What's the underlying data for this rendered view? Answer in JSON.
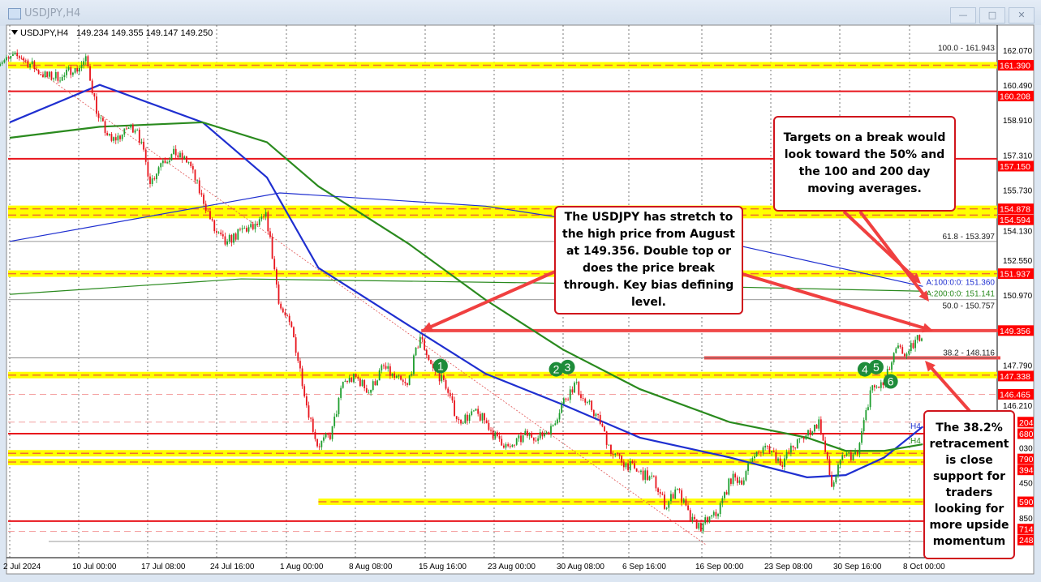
{
  "window": {
    "title": "USDJPY,H4",
    "buttons": [
      "minimize",
      "maximize",
      "close"
    ]
  },
  "header": {
    "symbol": "USDJPY,H4",
    "ohlc": "149.234 149.355 149.147 149.250"
  },
  "colors": {
    "bull": "#1e9e2e",
    "bear": "#e8141c",
    "ma100": "#1f2fd0",
    "ma200": "#2a8a1e",
    "level": "#e8141c",
    "zone": "#ffff00",
    "note_border": "#d0141c",
    "marker": "#1e8c3a"
  },
  "chart_data": {
    "type": "candlestick",
    "title": "",
    "ylim": [
      139.5,
      162.6
    ],
    "grid": true,
    "y_ticks": [
      "162.070",
      "160.490",
      "158.910",
      "157.310",
      "155.730",
      "154.130",
      "152.550",
      "150.970",
      "147.790",
      "146.210"
    ],
    "y_ticks_partial": [
      "030",
      "450",
      "850"
    ],
    "x_ticks": [
      "2 Jul 2024",
      "10 Jul 00:00",
      "17 Jul 08:00",
      "24 Jul 16:00",
      "1 Aug 00:00",
      "8 Aug 08:00",
      "15 Aug 16:00",
      "23 Aug 00:00",
      "30 Aug 08:00",
      "6 Sep 16:00",
      "16 Sep 00:00",
      "23 Sep 08:00",
      "30 Sep 16:00",
      "8 Oct 00:00"
    ],
    "closes": [
      [
        "2024-07-02",
        161.6
      ],
      [
        "2024-07-03",
        161.8
      ],
      [
        "2024-07-04",
        161.3
      ],
      [
        "2024-07-05",
        160.86
      ],
      [
        "2024-07-08",
        160.9
      ],
      [
        "2024-07-09",
        161.3
      ],
      [
        "2024-07-10",
        161.6
      ],
      [
        "2024-07-11",
        158.9
      ],
      [
        "2024-07-12",
        157.9
      ],
      [
        "2024-07-15",
        158.3
      ],
      [
        "2024-07-16",
        158.6
      ],
      [
        "2024-07-17",
        156.2
      ],
      [
        "2024-07-18",
        157.2
      ],
      [
        "2024-07-19",
        157.4
      ],
      [
        "2024-07-22",
        157.0
      ],
      [
        "2024-07-23",
        155.4
      ],
      [
        "2024-07-24",
        153.9
      ],
      [
        "2024-07-25",
        153.2
      ],
      [
        "2024-07-26",
        153.8
      ],
      [
        "2024-07-29",
        154.0
      ],
      [
        "2024-07-30",
        154.5
      ],
      [
        "2024-07-31",
        150.8
      ],
      [
        "2024-08-01",
        149.4
      ],
      [
        "2024-08-02",
        146.6
      ],
      [
        "2024-08-05",
        144.2
      ],
      [
        "2024-08-06",
        144.6
      ],
      [
        "2024-08-07",
        147.0
      ],
      [
        "2024-08-08",
        147.2
      ],
      [
        "2024-08-09",
        146.6
      ],
      [
        "2024-08-12",
        147.6
      ],
      [
        "2024-08-13",
        147.2
      ],
      [
        "2024-08-14",
        146.8
      ],
      [
        "2024-08-15",
        149.1
      ],
      [
        "2024-08-16",
        147.6
      ],
      [
        "2024-08-19",
        146.9
      ],
      [
        "2024-08-20",
        145.2
      ],
      [
        "2024-08-21",
        145.5
      ],
      [
        "2024-08-22",
        145.3
      ],
      [
        "2024-08-23",
        144.4
      ],
      [
        "2024-08-26",
        143.9
      ],
      [
        "2024-08-27",
        144.5
      ],
      [
        "2024-08-28",
        144.6
      ],
      [
        "2024-08-29",
        144.9
      ],
      [
        "2024-08-30",
        146.0
      ],
      [
        "2024-09-02",
        146.9
      ],
      [
        "2024-09-03",
        145.9
      ],
      [
        "2024-09-04",
        145.2
      ],
      [
        "2024-09-05",
        143.7
      ],
      [
        "2024-09-06",
        143.3
      ],
      [
        "2024-09-09",
        142.9
      ],
      [
        "2024-09-10",
        142.6
      ],
      [
        "2024-09-11",
        141.5
      ],
      [
        "2024-09-12",
        142.3
      ],
      [
        "2024-09-13",
        140.8
      ],
      [
        "2024-09-16",
        140.4
      ],
      [
        "2024-09-17",
        141.0
      ],
      [
        "2024-09-18",
        142.4
      ],
      [
        "2024-09-19",
        142.6
      ],
      [
        "2024-09-20",
        143.9
      ],
      [
        "2024-09-23",
        144.1
      ],
      [
        "2024-09-24",
        143.4
      ],
      [
        "2024-09-25",
        144.1
      ],
      [
        "2024-09-26",
        144.6
      ],
      [
        "2024-09-27",
        145.2
      ],
      [
        "2024-09-30",
        142.3
      ],
      [
        "2024-10-01",
        143.8
      ],
      [
        "2024-10-02",
        143.7
      ],
      [
        "2024-10-03",
        146.6
      ],
      [
        "2024-10-04",
        146.9
      ],
      [
        "2024-10-07",
        148.4
      ],
      [
        "2024-10-08",
        148.2
      ],
      [
        "2024-10-09",
        149.25
      ]
    ],
    "moving_averages": [
      {
        "name": "H4 100",
        "color": "#1f2fd0",
        "points": [
          [
            "2024-07-02",
            158.8
          ],
          [
            "2024-07-11",
            160.5
          ],
          [
            "2024-07-23",
            158.8
          ],
          [
            "2024-07-30",
            156.3
          ],
          [
            "2024-08-05",
            152.2
          ],
          [
            "2024-08-14",
            149.6
          ],
          [
            "2024-08-22",
            147.4
          ],
          [
            "2024-08-30",
            146.0
          ],
          [
            "2024-09-09",
            144.5
          ],
          [
            "2024-09-18",
            143.6
          ],
          [
            "2024-09-26",
            142.7
          ],
          [
            "2024-10-01",
            142.8
          ],
          [
            "2024-10-04",
            143.6
          ],
          [
            "2024-10-09",
            145.0
          ]
        ]
      },
      {
        "name": "H4 200",
        "color": "#2a8a1e",
        "points": [
          [
            "2024-07-02",
            158.1
          ],
          [
            "2024-07-11",
            158.6
          ],
          [
            "2024-07-23",
            158.8
          ],
          [
            "2024-07-30",
            157.9
          ],
          [
            "2024-08-05",
            155.9
          ],
          [
            "2024-08-14",
            153.3
          ],
          [
            "2024-08-22",
            150.75
          ],
          [
            "2024-08-30",
            148.5
          ],
          [
            "2024-09-09",
            146.7
          ],
          [
            "2024-09-18",
            145.2
          ],
          [
            "2024-09-26",
            144.5
          ],
          [
            "2024-10-01",
            143.9
          ],
          [
            "2024-10-04",
            143.9
          ],
          [
            "2024-10-09",
            144.2
          ]
        ]
      },
      {
        "name": "D1 100",
        "color": "#1f2fd0",
        "thin": true,
        "points": [
          [
            "2024-07-02",
            153.4
          ],
          [
            "2024-07-31",
            155.6
          ],
          [
            "2024-08-22",
            155.0
          ],
          [
            "2024-09-18",
            153.3
          ],
          [
            "2024-10-09",
            151.36
          ]
        ]
      },
      {
        "name": "D1 200",
        "color": "#2a8a1e",
        "thin": true,
        "points": [
          [
            "2024-07-02",
            151.0
          ],
          [
            "2024-07-26",
            151.7
          ],
          [
            "2024-08-30",
            151.5
          ],
          [
            "2024-10-09",
            151.141
          ]
        ]
      }
    ],
    "ma_labels": [
      {
        "text": "A:100:0:0: 151.360",
        "color": "#1f2fd0"
      },
      {
        "text": "A:200:0:0: 151.141",
        "color": "#2a8a1e"
      },
      {
        "text": "H4",
        "color": "#1f2fd0"
      },
      {
        "text": "H4",
        "color": "#2a8a1e"
      }
    ],
    "fib_levels": [
      {
        "label": "100.0 - 161.943",
        "price": 161.943
      },
      {
        "label": "61.8 - 153.397",
        "price": 153.397
      },
      {
        "label": "50.0 - 150.757",
        "price": 150.757
      },
      {
        "label": "38.2 - 148.116",
        "price": 148.116
      }
    ],
    "levels": [
      {
        "price": 161.39,
        "style": "zone",
        "label": "161.390"
      },
      {
        "price": 160.208,
        "style": "solid",
        "label": "160.208"
      },
      {
        "price": 157.15,
        "style": "solid",
        "label": "157.150"
      },
      {
        "price": 154.878,
        "style": "zone",
        "label": "154.878"
      },
      {
        "price": 154.594,
        "style": "zone",
        "label": "154.594"
      },
      {
        "price": 151.937,
        "style": "zone",
        "label": "151.937"
      },
      {
        "price": 149.356,
        "style": "thick",
        "label": "149.356",
        "from": "2024-08-15"
      },
      {
        "price": 148.116,
        "style": "thick",
        "label": "",
        "from": "2024-09-16"
      },
      {
        "price": 147.338,
        "style": "zone",
        "label": "147.338"
      },
      {
        "price": 146.465,
        "style": "dashed",
        "label": "146.465"
      },
      {
        "price": 145.204,
        "style": "dashed",
        "label": "204"
      },
      {
        "price": 144.68,
        "style": "solid",
        "label": "680"
      },
      {
        "price": 143.79,
        "style": "zone",
        "label": "790"
      },
      {
        "price": 143.394,
        "style": "zone",
        "label": "394"
      },
      {
        "price": 141.59,
        "style": "zone",
        "label": "590",
        "from": "2024-08-05"
      },
      {
        "price": 140.714,
        "style": "solid",
        "label": "714"
      },
      {
        "price": 140.248,
        "style": "dashed",
        "label": "248"
      }
    ],
    "markers": [
      {
        "label": "1",
        "date": "2024-08-19",
        "price": 147.75
      },
      {
        "label": "2",
        "date": "2024-08-30",
        "price": 147.6
      },
      {
        "label": "3",
        "date": "2024-08-30",
        "price": 147.7,
        "offset": 1
      },
      {
        "label": "4",
        "date": "2024-10-03",
        "price": 147.6
      },
      {
        "label": "5",
        "date": "2024-10-03",
        "price": 147.7,
        "offset": 1
      },
      {
        "label": "6",
        "date": "2024-10-07",
        "price": 147.05
      }
    ]
  },
  "annotations": [
    {
      "text": "Targets on a break would look toward the 50% and the 100 and 200 day moving averages."
    },
    {
      "text": "The USDJPY has stretch to the high price from August at 149.356. Double top or does the price break through. Key bias defining level."
    },
    {
      "text": "The 38.2% retracement is close support for traders looking for more upside momentum"
    }
  ]
}
